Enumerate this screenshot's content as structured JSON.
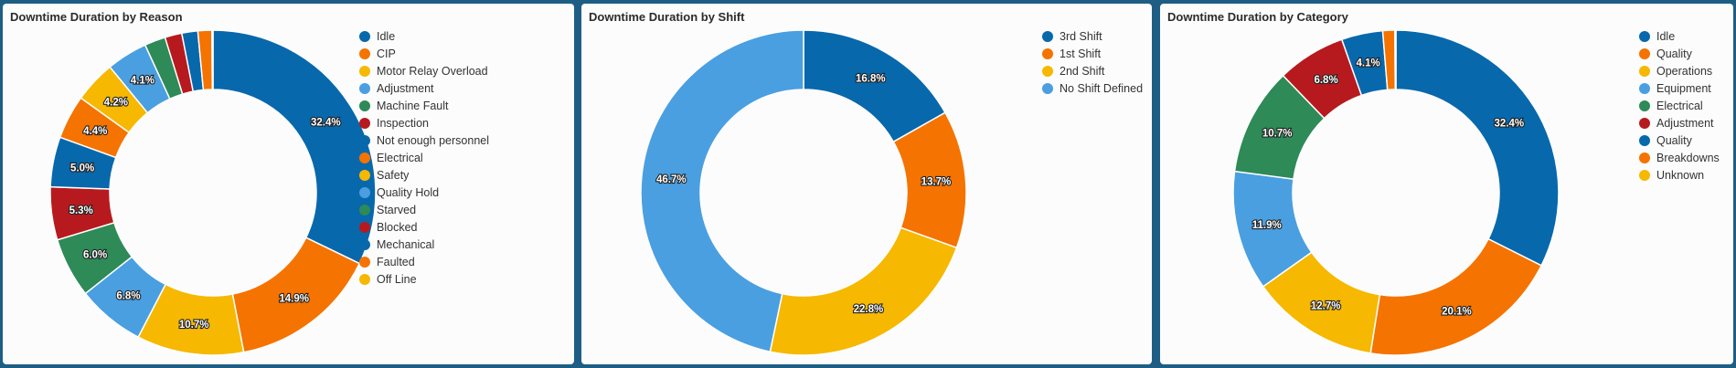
{
  "chart_data": [
    {
      "type": "donut",
      "title": "Downtime Duration by Reason",
      "unit": "%",
      "slices": [
        {
          "label": "Idle",
          "value": 32.4,
          "color": "#0868ac",
          "data_label": "32.4%"
        },
        {
          "label": "CIP",
          "value": 14.9,
          "color": "#f57300",
          "data_label": "14.9%"
        },
        {
          "label": "Motor Relay Overload",
          "value": 10.7,
          "color": "#f6b800",
          "data_label": "10.7%"
        },
        {
          "label": "Adjustment",
          "value": 6.8,
          "color": "#4a9fe1",
          "data_label": "6.8%"
        },
        {
          "label": "Machine Fault",
          "value": 6.0,
          "color": "#2e8a57",
          "data_label": "6.0%"
        },
        {
          "label": "Inspection",
          "value": 5.3,
          "color": "#b71a1e",
          "data_label": "5.3%"
        },
        {
          "label": "Not enough personnel",
          "value": 5.0,
          "color": "#0868ac",
          "data_label": "5.0%"
        },
        {
          "label": "Electrical",
          "value": 4.4,
          "color": "#f57300",
          "data_label": "4.4%"
        },
        {
          "label": "Safety",
          "value": 4.2,
          "color": "#f6b800",
          "data_label": "4.2%"
        },
        {
          "label": "Quality Hold",
          "value": 4.1,
          "color": "#4a9fe1",
          "data_label": "4.1%"
        },
        {
          "label": "Starved",
          "value": 2.1,
          "color": "#2e8a57",
          "data_label": ""
        },
        {
          "label": "Blocked",
          "value": 1.7,
          "color": "#b71a1e",
          "data_label": ""
        },
        {
          "label": "Mechanical",
          "value": 1.6,
          "color": "#0868ac",
          "data_label": ""
        },
        {
          "label": "Faulted",
          "value": 1.4,
          "color": "#f57300",
          "data_label": ""
        },
        {
          "label": "Off Line",
          "value": 0.1,
          "color": "#f6b800",
          "data_label": ""
        }
      ]
    },
    {
      "type": "donut",
      "title": "Downtime Duration by Shift",
      "unit": "%",
      "slices": [
        {
          "label": "3rd Shift",
          "value": 16.8,
          "color": "#0868ac",
          "data_label": "16.8%"
        },
        {
          "label": "1st Shift",
          "value": 13.7,
          "color": "#f57300",
          "data_label": "13.7%"
        },
        {
          "label": "2nd Shift",
          "value": 22.8,
          "color": "#f6b800",
          "data_label": "22.8%"
        },
        {
          "label": "No Shift Defined",
          "value": 46.7,
          "color": "#4a9fe1",
          "data_label": "46.7%"
        }
      ]
    },
    {
      "type": "donut",
      "title": "Downtime Duration by Category",
      "unit": "%",
      "slices": [
        {
          "label": "Idle",
          "value": 32.4,
          "color": "#0868ac",
          "data_label": "32.4%"
        },
        {
          "label": "Quality",
          "value": 20.1,
          "color": "#f57300",
          "data_label": "20.1%"
        },
        {
          "label": "Operations",
          "value": 12.7,
          "color": "#f6b800",
          "data_label": "12.7%"
        },
        {
          "label": "Equipment",
          "value": 11.9,
          "color": "#4a9fe1",
          "data_label": "11.9%"
        },
        {
          "label": "Electrical",
          "value": 10.7,
          "color": "#2e8a57",
          "data_label": "10.7%"
        },
        {
          "label": "Adjustment",
          "value": 6.8,
          "color": "#b71a1e",
          "data_label": "6.8%"
        },
        {
          "label": "Quality",
          "value": 4.1,
          "color": "#0868ac",
          "data_label": "4.1%"
        },
        {
          "label": "Breakdowns",
          "value": 1.2,
          "color": "#f57300",
          "data_label": ""
        },
        {
          "label": "Unknown",
          "value": 0.1,
          "color": "#f6b800",
          "data_label": ""
        }
      ]
    }
  ]
}
